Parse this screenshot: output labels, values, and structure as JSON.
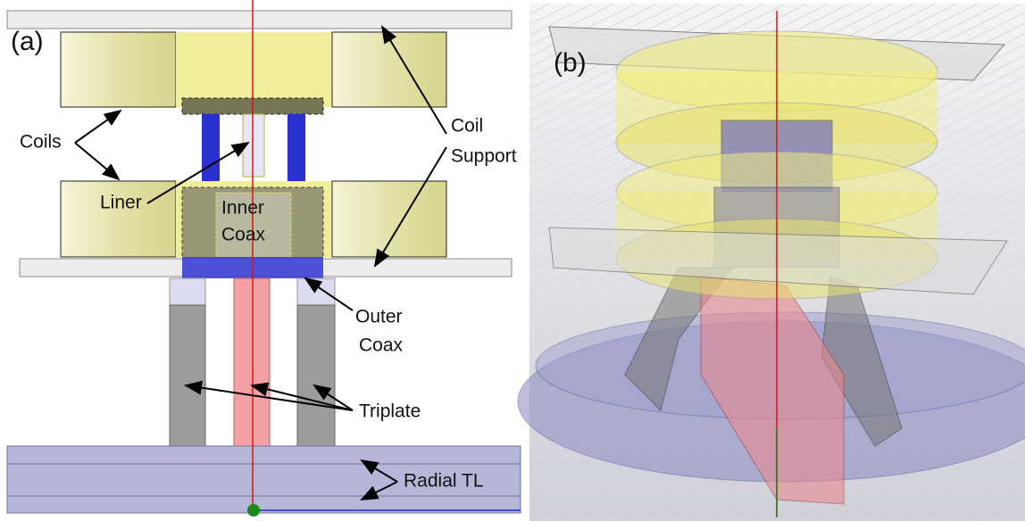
{
  "panels": [
    {
      "label": "(a)",
      "annotations": [
        {
          "lines": [
            "Coils"
          ]
        },
        {
          "lines": [
            "Liner"
          ]
        },
        {
          "lines": [
            "Inner",
            "Coax"
          ]
        },
        {
          "lines": [
            "Coil",
            "Support"
          ]
        },
        {
          "lines": [
            "Outer",
            "Coax"
          ]
        },
        {
          "lines": [
            "Triplate"
          ]
        },
        {
          "lines": [
            "Radial TL"
          ]
        }
      ]
    },
    {
      "label": "(b)"
    }
  ]
}
